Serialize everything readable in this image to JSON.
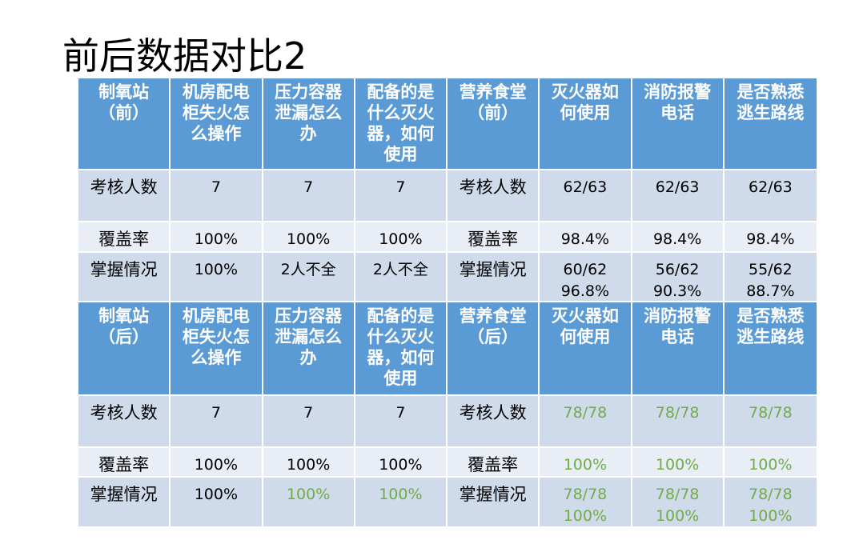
{
  "title": "前后数据对比2",
  "table": {
    "sections": [
      {
        "header": [
          "制氧站（前）",
          "机房配电柜失火怎么操作",
          "压力容器泄漏怎么办",
          "配备的是什么灭火器，如何使用",
          "营养食堂（前）",
          "灭火器如何使用",
          "消防报警电话",
          "是否熟悉逃生路线"
        ],
        "rows": [
          [
            "考核人数",
            "7",
            "7",
            "7",
            "考核人数",
            "62/63",
            "62/63",
            "62/63"
          ],
          [
            "覆盖率",
            "100%",
            "100%",
            "100%",
            "覆盖率",
            "98.4%",
            "98.4%",
            "98.4%"
          ],
          [
            "掌握情况",
            "100%",
            "2人不全",
            "2人不全",
            "掌握情况",
            [
              "60/62",
              "96.8%"
            ],
            [
              "56/62",
              "90.3%"
            ],
            [
              "55/62",
              "88.7%"
            ]
          ]
        ]
      },
      {
        "header": [
          "制氧站（后）",
          "机房配电柜失火怎么操作",
          "压力容器泄漏怎么办",
          "配备的是什么灭火器，如何使用",
          "营养食堂（后）",
          "灭火器如何使用",
          "消防报警电话",
          "是否熟悉逃生路线"
        ],
        "rows": [
          [
            "考核人数",
            "7",
            "7",
            "7",
            "考核人数",
            {
              "text": "78/78",
              "color": "#70ad47"
            },
            {
              "text": "78/78",
              "color": "#70ad47"
            },
            {
              "text": "78/78",
              "color": "#70ad47"
            }
          ],
          [
            "覆盖率",
            "100%",
            "100%",
            "100%",
            "覆盖率",
            {
              "text": "100%",
              "color": "#70ad47"
            },
            {
              "text": "100%",
              "color": "#70ad47"
            },
            {
              "text": "100%",
              "color": "#70ad47"
            }
          ],
          [
            "掌握情况",
            "100%",
            {
              "text": "100%",
              "color": "#70ad47"
            },
            {
              "text": "100%",
              "color": "#70ad47"
            },
            "掌握情况",
            {
              "text": [
                "78/78",
                "100%"
              ],
              "color": "#70ad47"
            },
            {
              "text": [
                "78/78",
                "100%"
              ],
              "color": "#70ad47"
            },
            {
              "text": [
                "78/78",
                "100%"
              ],
              "color": "#70ad47"
            }
          ]
        ]
      }
    ]
  }
}
